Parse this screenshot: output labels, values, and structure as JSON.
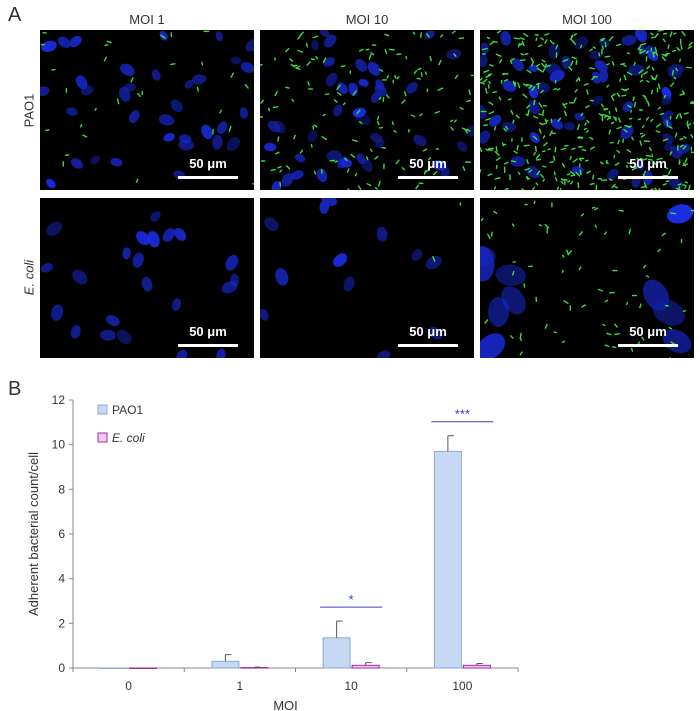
{
  "panel_a_label": "A",
  "panel_b_label": "B",
  "columns": [
    "MOI 1",
    "MOI 10",
    "MOI 100"
  ],
  "rows": [
    "PAO1",
    "E. coli"
  ],
  "scale_bar_label": "50 μm",
  "colors": {
    "nuclei": "#1a2bd6",
    "bacteria": "#39e03c",
    "pao1_bar": "#c5d9f5",
    "pao1_edge": "#8aa9d8",
    "ecoli_bar": "#f3c8f1",
    "ecoli_edge": "#a02aa0",
    "significance": "#3a3ad8"
  },
  "chart_data": {
    "type": "bar",
    "categories": [
      "0",
      "1",
      "10",
      "100"
    ],
    "xlabel": "MOI",
    "ylabel": "Adherent bacterial count/cell",
    "ylim": [
      0,
      12
    ],
    "yticks": [
      "0",
      "2",
      "4",
      "6",
      "8",
      "10",
      "12"
    ],
    "series": [
      {
        "name": "PAO1",
        "values": [
          0,
          0.3,
          1.35,
          9.7
        ],
        "errors": [
          0,
          0.3,
          0.75,
          0.7
        ]
      },
      {
        "name": "E. coli",
        "values": [
          0,
          0.02,
          0.12,
          0.12
        ],
        "errors": [
          0,
          0.02,
          0.12,
          0.08
        ]
      }
    ],
    "annotations": [
      {
        "category": "10",
        "text": "*"
      },
      {
        "category": "100",
        "text": "***"
      }
    ],
    "legend_position": "top-left"
  }
}
